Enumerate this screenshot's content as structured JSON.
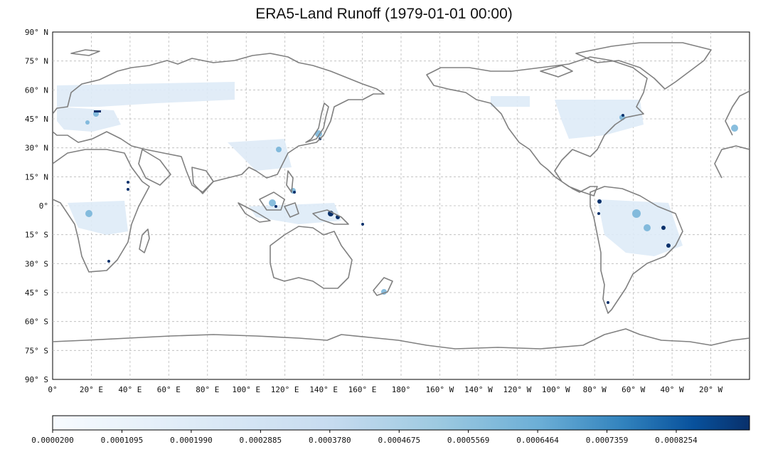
{
  "title": "ERA5-Land Runoff (1979-01-01 00:00)",
  "map": {
    "lat_labels": [
      "90° N",
      "75° N",
      "60° N",
      "45° N",
      "30° N",
      "15° N",
      "0°",
      "15° S",
      "30° S",
      "45° S",
      "60° S",
      "75° S",
      "90° S"
    ],
    "lon_labels": [
      "0°",
      "20° E",
      "40° E",
      "60° E",
      "80° E",
      "100° E",
      "120° E",
      "140° E",
      "160° E",
      "180°",
      "160° W",
      "140° W",
      "120° W",
      "100° W",
      "80° W",
      "60° W",
      "40° W",
      "20° W"
    ],
    "central_longitude": 180,
    "grid": true
  },
  "colorbar": {
    "tick_labels": [
      "0.0000200",
      "0.0001095",
      "0.0001990",
      "0.0002885",
      "0.0003780",
      "0.0004675",
      "0.0005569",
      "0.0006464",
      "0.0007359",
      "0.0008254"
    ],
    "min": 2e-05,
    "max": 0.00092,
    "color_low": "#f7fbff",
    "color_high": "#08306b"
  },
  "colors": {
    "coastline": "#808080",
    "runoff_light": "#deebf7",
    "runoff_mid": "#6baed6",
    "runoff_dark": "#08306b"
  }
}
